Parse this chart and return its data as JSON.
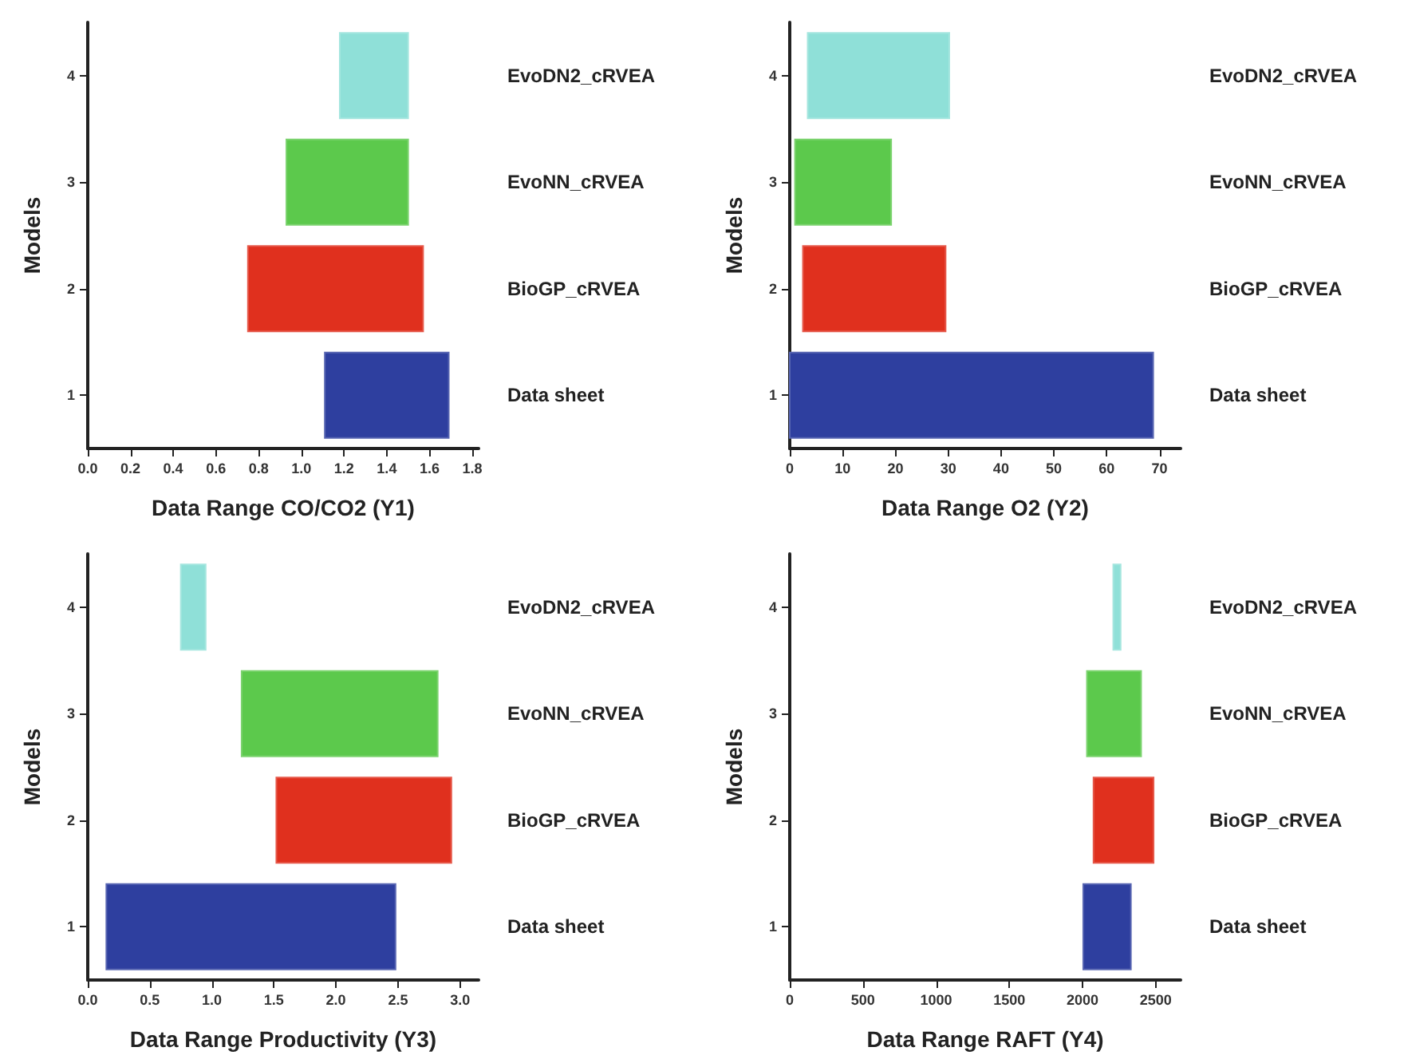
{
  "chart_data": [
    {
      "type": "bar",
      "orientation": "horizontal",
      "xlabel": "Data Range CO/CO2 (Y1)",
      "ylabel": "Models",
      "categories": [
        "4",
        "3",
        "2",
        "1"
      ],
      "xlim": [
        0,
        1.83
      ],
      "xticks": [
        {
          "value": 0,
          "label": "0.0"
        },
        0.2,
        0.4,
        0.6,
        0.8,
        {
          "value": 1,
          "label": "1.0"
        },
        1.2,
        1.4,
        1.6,
        1.8
      ],
      "grid": false,
      "series": [
        {
          "name": "EvoDN2_cRVEA",
          "color": "#8fe0d8",
          "values": [
            0.32,
            null,
            null,
            null
          ],
          "base": [
            1.18,
            null,
            null,
            null
          ]
        },
        {
          "name": "EvoNN_cRVEA",
          "color": "#5cc94c",
          "values": [
            null,
            0.57,
            null,
            null
          ],
          "base": [
            null,
            0.93,
            null,
            null
          ]
        },
        {
          "name": "BioGP_cRVEA",
          "color": "#e0301e",
          "values": [
            null,
            null,
            0.82,
            null
          ],
          "base": [
            null,
            null,
            0.75,
            null
          ]
        },
        {
          "name": "Data sheet",
          "color": "#2e3f9f",
          "values": [
            null,
            null,
            null,
            0.58
          ],
          "base": [
            null,
            null,
            null,
            1.11
          ]
        }
      ]
    },
    {
      "type": "bar",
      "orientation": "horizontal",
      "xlabel": "Data Range O2 (Y2)",
      "ylabel": "Models",
      "categories": [
        "4",
        "3",
        "2",
        "1"
      ],
      "xlim": [
        0,
        74
      ],
      "xticks": [
        0,
        10,
        20,
        30,
        40,
        50,
        60,
        70
      ],
      "grid": false,
      "series": [
        {
          "name": "EvoDN2_cRVEA",
          "color": "#8fe0d8",
          "values": [
            26.8,
            null,
            null,
            null
          ],
          "base": [
            3.4,
            null,
            null,
            null
          ]
        },
        {
          "name": "EvoNN_cRVEA",
          "color": "#5cc94c",
          "values": [
            null,
            18.2,
            null,
            null
          ],
          "base": [
            null,
            1,
            null,
            null
          ]
        },
        {
          "name": "BioGP_cRVEA",
          "color": "#e0301e",
          "values": [
            null,
            null,
            27,
            null
          ],
          "base": [
            null,
            null,
            2.5,
            null
          ]
        },
        {
          "name": "Data sheet",
          "color": "#2e3f9f",
          "values": [
            null,
            null,
            null,
            68.8
          ],
          "base": [
            null,
            null,
            null,
            0
          ]
        }
      ]
    },
    {
      "type": "bar",
      "orientation": "horizontal",
      "xlabel": "Data Range Productivity (Y3)",
      "ylabel": "Models",
      "categories": [
        "4",
        "3",
        "2",
        "1"
      ],
      "xlim": [
        0,
        3.15
      ],
      "xticks": [
        {
          "value": 0,
          "label": "0.0"
        },
        0.5,
        {
          "value": 1,
          "label": "1.0"
        },
        1.5,
        {
          "value": 2,
          "label": "2.0"
        },
        2.5,
        {
          "value": 3,
          "label": "3.0"
        }
      ],
      "grid": false,
      "series": [
        {
          "name": "EvoDN2_cRVEA",
          "color": "#8fe0d8",
          "values": [
            0.2,
            null,
            null,
            null
          ],
          "base": [
            0.75,
            null,
            null,
            null
          ]
        },
        {
          "name": "EvoNN_cRVEA",
          "color": "#5cc94c",
          "values": [
            null,
            1.58,
            null,
            null
          ],
          "base": [
            null,
            1.24,
            null,
            null
          ]
        },
        {
          "name": "BioGP_cRVEA",
          "color": "#e0301e",
          "values": [
            null,
            null,
            1.41,
            null
          ],
          "base": [
            null,
            null,
            1.52,
            null
          ]
        },
        {
          "name": "Data sheet",
          "color": "#2e3f9f",
          "values": [
            null,
            null,
            null,
            2.33
          ],
          "base": [
            null,
            null,
            null,
            0.15
          ]
        }
      ]
    },
    {
      "type": "bar",
      "orientation": "horizontal",
      "xlabel": "Data Range RAFT (Y4)",
      "ylabel": "Models",
      "categories": [
        "4",
        "3",
        "2",
        "1"
      ],
      "xlim": [
        0,
        2670
      ],
      "xticks": [
        0,
        500,
        1000,
        1500,
        2000,
        2500
      ],
      "grid": false,
      "series": [
        {
          "name": "EvoDN2_cRVEA",
          "color": "#8fe0d8",
          "values": [
            50,
            null,
            null,
            null
          ],
          "base": [
            2210,
            null,
            null,
            null
          ]
        },
        {
          "name": "EvoNN_cRVEA",
          "color": "#5cc94c",
          "values": [
            null,
            370,
            null,
            null
          ],
          "base": [
            null,
            2030,
            null,
            null
          ]
        },
        {
          "name": "BioGP_cRVEA",
          "color": "#e0301e",
          "values": [
            null,
            null,
            410,
            null
          ],
          "base": [
            null,
            null,
            2075,
            null
          ]
        },
        {
          "name": "Data sheet",
          "color": "#2e3f9f",
          "values": [
            null,
            null,
            null,
            325
          ],
          "base": [
            null,
            null,
            null,
            2005
          ]
        }
      ]
    }
  ]
}
